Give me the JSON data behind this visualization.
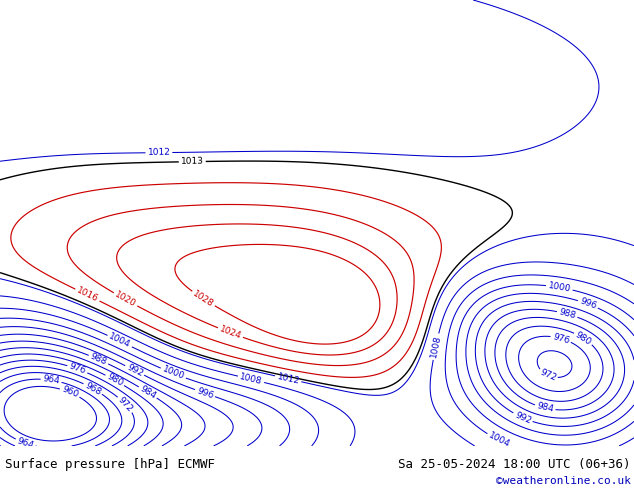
{
  "title_left": "Surface pressure [hPa] ECMWF",
  "title_right": "Sa 25-05-2024 18:00 UTC (06+36)",
  "copyright": "©weatheronline.co.uk",
  "land_color": "#b8e896",
  "ocean_color": "#d8dde8",
  "contour_color_blue": "#0000cc",
  "contour_color_red": "#cc0000",
  "contour_color_black": "#000000",
  "footer_fontsize": 9,
  "copyright_fontsize": 8,
  "copyright_color": "#0000bb",
  "lon_min": 95,
  "lon_max": 195,
  "lat_min": -62,
  "lat_max": 25,
  "blue_levels": [
    960,
    964,
    968,
    972,
    976,
    980,
    984,
    988,
    992,
    996,
    1000,
    1004,
    1008,
    1012
  ],
  "red_levels": [
    1016,
    1020,
    1024,
    1028
  ],
  "black_levels": [
    1013
  ]
}
